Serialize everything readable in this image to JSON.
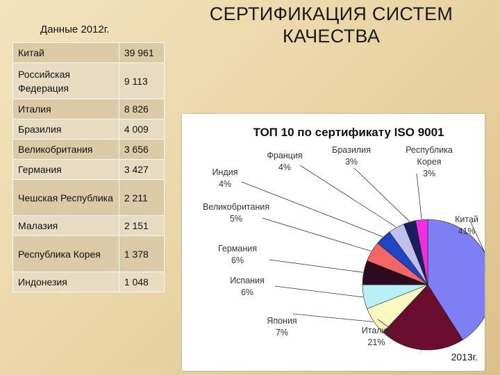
{
  "slide": {
    "title": "СЕРТИФИКАЦИЯ СИСТЕМ КАЧЕСТВА",
    "table_caption": "Данные 2012г.",
    "year_label": "2013г."
  },
  "table": {
    "rows": [
      {
        "country": "Китай",
        "value": "39 961"
      },
      {
        "country": "Российская Федерация",
        "value": "9 113"
      },
      {
        "country": "Италия",
        "value": "8 826"
      },
      {
        "country": "Бразилия",
        "value": "4 009"
      },
      {
        "country": "Великобритания",
        "value": "3 656"
      },
      {
        "country": "Германия",
        "value": "3 427"
      },
      {
        "country": "Чешская Республика",
        "value": "2 211"
      },
      {
        "country": "Малазия",
        "value": "2 151"
      },
      {
        "country": "Республика Корея",
        "value": "1 378"
      },
      {
        "country": "Индонезия",
        "value": "1 048"
      }
    ]
  },
  "chart_data": {
    "type": "pie",
    "title": "ТОП 10 по сертификату ISO 9001",
    "slices": [
      {
        "label": "Китай",
        "percent": 41,
        "color": "#7f7ff5",
        "label_pct": "41%"
      },
      {
        "label": "Италия",
        "percent": 21,
        "color": "#6b0d2e",
        "label_pct": "21%"
      },
      {
        "label": "Япония",
        "percent": 7,
        "color": "#fafac0",
        "label_pct": "7%"
      },
      {
        "label": "Испания",
        "percent": 6,
        "color": "#b9f0f6",
        "label_pct": "6%"
      },
      {
        "label": "Германия",
        "percent": 6,
        "color": "#2d0b1f",
        "label_pct": "6%"
      },
      {
        "label": "Великобритания",
        "percent": 5,
        "color": "#f26666",
        "label_pct": "5%"
      },
      {
        "label": "Индия",
        "percent": 4,
        "color": "#1f45c4",
        "label_pct": "4%"
      },
      {
        "label": "Франция",
        "percent": 4,
        "color": "#c0c0ee",
        "label_pct": "4%"
      },
      {
        "label": "Бразилия",
        "percent": 3,
        "color": "#1e1e5e",
        "label_pct": "3%"
      },
      {
        "label": "Республика Корея",
        "percent": 3,
        "color": "#f02ee6",
        "label_pct": "3%"
      }
    ]
  },
  "colors": {
    "row_bg_a": "#dcc9a6",
    "row_bg_b": "#e8dbc2"
  }
}
